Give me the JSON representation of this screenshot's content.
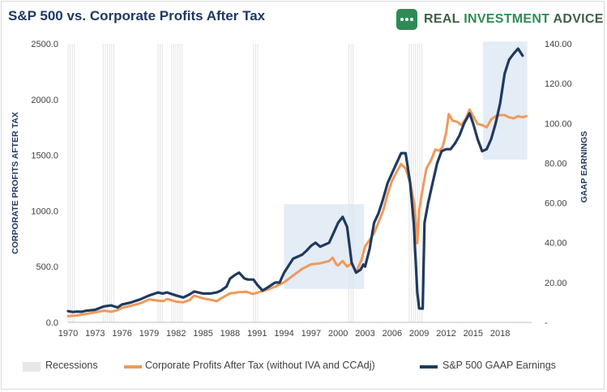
{
  "title": "S&P 500 vs. Corporate Profits After Tax",
  "logo": {
    "text_a": "REAL ",
    "text_b": "INVESTMENT",
    "text_c": " ADVICE",
    "icon": "chat-bubble-icon",
    "color": "#2e8b57"
  },
  "legend": [
    {
      "label": "Recessions",
      "color": "#e7e7e7"
    },
    {
      "label": "Corporate Profits After Tax (without IVA and CCAdj)",
      "color": "#f0995a"
    },
    {
      "label": "S&P 500 GAAP Earnings",
      "color": "#1f3a5f"
    }
  ],
  "chart_data": {
    "type": "line",
    "title": "S&P 500 vs. Corporate Profits After Tax",
    "y_left": {
      "label": "CORPORATE PROFITS AFTER TAX",
      "min": 0,
      "max": 2500,
      "ticks": [
        "0.0",
        "500.0",
        "1000.0",
        "1500.0",
        "2000.0",
        "2500.0"
      ]
    },
    "y_right": {
      "label": "GAAP EARNINGS",
      "min": 0,
      "max": 140,
      "ticks": [
        "-",
        "20.00",
        "40.00",
        "60.00",
        "80.00",
        "100.00",
        "120.00",
        "140.00"
      ]
    },
    "x": {
      "min": 1970,
      "max": 2021.5,
      "ticks": [
        "1970",
        "1973",
        "1976",
        "1979",
        "1982",
        "1985",
        "1988",
        "1991",
        "1994",
        "1997",
        "2000",
        "2003",
        "2006",
        "2009",
        "2012",
        "2015",
        "2018"
      ]
    },
    "recessions": [
      [
        1970.0,
        1970.9
      ],
      [
        1973.9,
        1975.2
      ],
      [
        1980.0,
        1980.6
      ],
      [
        1981.5,
        1982.9
      ],
      [
        1990.6,
        1991.2
      ],
      [
        2001.2,
        2001.9
      ],
      [
        2007.9,
        2009.5
      ]
    ],
    "highlights": [
      {
        "x": [
          1994.0,
          2002.9
        ],
        "y_left": [
          300,
          1060
        ]
      },
      {
        "x": [
          2016.1,
          2021.0
        ],
        "y_left": [
          1460,
          2520
        ]
      }
    ],
    "series": [
      {
        "name": "Corporate Profits After Tax (without IVA and CCAdj)",
        "axis": "left",
        "color": "#f0995a",
        "points": [
          [
            1970,
            55
          ],
          [
            1971,
            62
          ],
          [
            1972,
            75
          ],
          [
            1973,
            90
          ],
          [
            1974,
            105
          ],
          [
            1974.8,
            95
          ],
          [
            1975.5,
            110
          ],
          [
            1976,
            130
          ],
          [
            1977,
            150
          ],
          [
            1978,
            170
          ],
          [
            1979,
            205
          ],
          [
            1980,
            195
          ],
          [
            1980.6,
            190
          ],
          [
            1981,
            210
          ],
          [
            1982,
            185
          ],
          [
            1982.8,
            180
          ],
          [
            1983.5,
            200
          ],
          [
            1984,
            240
          ],
          [
            1985,
            215
          ],
          [
            1986,
            200
          ],
          [
            1986.5,
            190
          ],
          [
            1987,
            215
          ],
          [
            1988,
            260
          ],
          [
            1989,
            270
          ],
          [
            1989.8,
            275
          ],
          [
            1990.5,
            255
          ],
          [
            1991,
            265
          ],
          [
            1992,
            290
          ],
          [
            1993,
            320
          ],
          [
            1994,
            360
          ],
          [
            1995,
            420
          ],
          [
            1996,
            480
          ],
          [
            1997,
            520
          ],
          [
            1998,
            530
          ],
          [
            1999,
            550
          ],
          [
            1999.4,
            580
          ],
          [
            1999.8,
            520
          ],
          [
            2000,
            510
          ],
          [
            2000.5,
            550
          ],
          [
            2001,
            500
          ],
          [
            2001.5,
            530
          ],
          [
            2002,
            450
          ],
          [
            2002.6,
            560
          ],
          [
            2003,
            680
          ],
          [
            2003.5,
            740
          ],
          [
            2004,
            800
          ],
          [
            2004.5,
            900
          ],
          [
            2005,
            1000
          ],
          [
            2005.5,
            1150
          ],
          [
            2006,
            1270
          ],
          [
            2006.5,
            1350
          ],
          [
            2007,
            1420
          ],
          [
            2007.5,
            1380
          ],
          [
            2008,
            1250
          ],
          [
            2008.5,
            1050
          ],
          [
            2008.8,
            710
          ],
          [
            2009.0,
            1000
          ],
          [
            2009.4,
            1200
          ],
          [
            2009.8,
            1380
          ],
          [
            2010.3,
            1450
          ],
          [
            2010.8,
            1550
          ],
          [
            2011.2,
            1540
          ],
          [
            2011.6,
            1570
          ],
          [
            2012.0,
            1700
          ],
          [
            2012.3,
            1870
          ],
          [
            2012.7,
            1810
          ],
          [
            2013.2,
            1800
          ],
          [
            2013.7,
            1770
          ],
          [
            2014.2,
            1830
          ],
          [
            2014.6,
            1910
          ],
          [
            2015,
            1850
          ],
          [
            2015.5,
            1780
          ],
          [
            2016,
            1770
          ],
          [
            2016.5,
            1750
          ],
          [
            2017,
            1820
          ],
          [
            2017.5,
            1850
          ],
          [
            2018,
            1860
          ],
          [
            2018.5,
            1860
          ],
          [
            2019,
            1840
          ],
          [
            2019.5,
            1830
          ],
          [
            2020,
            1850
          ],
          [
            2020.5,
            1840
          ],
          [
            2020.9,
            1850
          ]
        ]
      },
      {
        "name": "S&P 500 GAAP Earnings",
        "axis": "right",
        "color": "#1f3a5f",
        "points": [
          [
            1970,
            5.6
          ],
          [
            1970.5,
            5.2
          ],
          [
            1971,
            5.4
          ],
          [
            1971.5,
            5.3
          ],
          [
            1972,
            5.8
          ],
          [
            1973,
            6.3
          ],
          [
            1974,
            8.0
          ],
          [
            1974.8,
            8.5
          ],
          [
            1975.5,
            7.5
          ],
          [
            1976,
            9.0
          ],
          [
            1977,
            10.0
          ],
          [
            1978,
            11.5
          ],
          [
            1979,
            13.5
          ],
          [
            1980,
            15.0
          ],
          [
            1980.5,
            14.5
          ],
          [
            1981,
            15.0
          ],
          [
            1982,
            13.5
          ],
          [
            1982.8,
            12.5
          ],
          [
            1983.5,
            14.0
          ],
          [
            1984,
            15.5
          ],
          [
            1985,
            14.5
          ],
          [
            1985.8,
            14.5
          ],
          [
            1986.5,
            15.0
          ],
          [
            1987,
            16.0
          ],
          [
            1987.6,
            18.0
          ],
          [
            1988,
            22.0
          ],
          [
            1988.6,
            24.0
          ],
          [
            1989,
            25.0
          ],
          [
            1989.6,
            22.0
          ],
          [
            1990,
            21.5
          ],
          [
            1990.6,
            21.5
          ],
          [
            1991,
            19.0
          ],
          [
            1991.6,
            16.0
          ],
          [
            1992,
            17.0
          ],
          [
            1993,
            20.0
          ],
          [
            1993.5,
            20.0
          ],
          [
            1994,
            25.0
          ],
          [
            1995,
            32.0
          ],
          [
            1996,
            34.0
          ],
          [
            1996.5,
            36.0
          ],
          [
            1997,
            38.5
          ],
          [
            1997.5,
            40.0
          ],
          [
            1998,
            38.0
          ],
          [
            1998.5,
            39.0
          ],
          [
            1999,
            40.0
          ],
          [
            1999.5,
            45.0
          ],
          [
            2000,
            50.0
          ],
          [
            2000.5,
            53.0
          ],
          [
            2001,
            48.0
          ],
          [
            2001.5,
            30.0
          ],
          [
            2002,
            25.0
          ],
          [
            2002.5,
            26.5
          ],
          [
            2002.8,
            29.0
          ],
          [
            2003,
            28.0
          ],
          [
            2003.5,
            37.0
          ],
          [
            2004,
            50.0
          ],
          [
            2004.5,
            55.0
          ],
          [
            2005,
            62.0
          ],
          [
            2005.5,
            70.0
          ],
          [
            2006,
            75.0
          ],
          [
            2006.5,
            80.0
          ],
          [
            2007,
            85.0
          ],
          [
            2007.5,
            85.0
          ],
          [
            2008.0,
            70.0
          ],
          [
            2008.4,
            50.0
          ],
          [
            2008.8,
            15.0
          ],
          [
            2009.0,
            7.0
          ],
          [
            2009.4,
            6.9
          ],
          [
            2009.6,
            50.0
          ],
          [
            2010,
            60.0
          ],
          [
            2010.5,
            70.0
          ],
          [
            2011,
            80.0
          ],
          [
            2011.5,
            86.0
          ],
          [
            2012,
            87.0
          ],
          [
            2012.5,
            87.0
          ],
          [
            2013,
            90.0
          ],
          [
            2013.5,
            94.0
          ],
          [
            2014,
            100.0
          ],
          [
            2014.6,
            105.0
          ],
          [
            2015,
            100.0
          ],
          [
            2015.5,
            92.0
          ],
          [
            2016,
            86.0
          ],
          [
            2016.5,
            87.0
          ],
          [
            2017,
            92.0
          ],
          [
            2017.5,
            100.0
          ],
          [
            2018,
            110.0
          ],
          [
            2018.5,
            125.0
          ],
          [
            2019,
            132.0
          ],
          [
            2019.5,
            135.0
          ],
          [
            2020,
            137.5
          ],
          [
            2020.5,
            134.0
          ]
        ]
      }
    ],
    "grid": true,
    "legend_position": "bottom"
  }
}
